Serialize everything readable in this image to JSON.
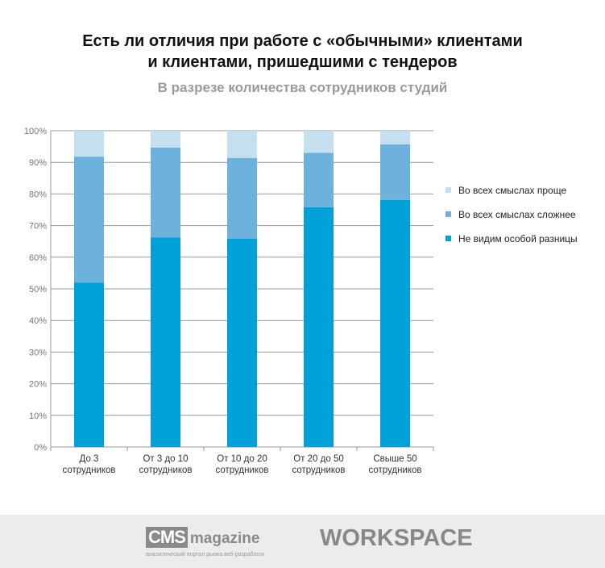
{
  "chart_data": {
    "type": "bar",
    "stacked": true,
    "title": "Есть ли отличия при работе с «обычными» клиентами и клиентами, пришедшими с тендеров",
    "title_lines": [
      "Есть ли отличия при работе с «обычными» клиентами",
      "и клиентами, пришедшими с тендеров"
    ],
    "subtitle": "В разрезе количества сотрудников студий",
    "categories": [
      [
        "До 3",
        "сотрудников"
      ],
      [
        "От 3 до 10",
        "сотрудников"
      ],
      [
        "От 10 до 20",
        "сотрудников"
      ],
      [
        "От 20 до 50",
        "сотрудников"
      ],
      [
        "Свыше 50",
        "сотрудников"
      ]
    ],
    "series": [
      {
        "name": "Не видим особой разницы",
        "color": "#00a0d8",
        "values": [
          52,
          66.3,
          65.9,
          75.8,
          78.1
        ]
      },
      {
        "name": "Во всех смыслах сложнее",
        "color": "#6cb2dc",
        "values": [
          39.8,
          28.4,
          25.5,
          17.2,
          17.6
        ]
      },
      {
        "name": "Во всех смыслах проще",
        "color": "#c4e0f0",
        "values": [
          8.2,
          5.3,
          8.6,
          7,
          4.3
        ]
      }
    ],
    "ylim": [
      0,
      100
    ],
    "yticks": [
      "0%",
      "10%",
      "20%",
      "30%",
      "40%",
      "50%",
      "60%",
      "70%",
      "80%",
      "90%",
      "100%"
    ],
    "grid": true,
    "legend": "right"
  },
  "footer": {
    "cms_box": "CMS",
    "cms_word": "magazine",
    "cms_tagline": "аналитический портал рынка веб-разработок",
    "workspace": "WORKSPACE"
  }
}
